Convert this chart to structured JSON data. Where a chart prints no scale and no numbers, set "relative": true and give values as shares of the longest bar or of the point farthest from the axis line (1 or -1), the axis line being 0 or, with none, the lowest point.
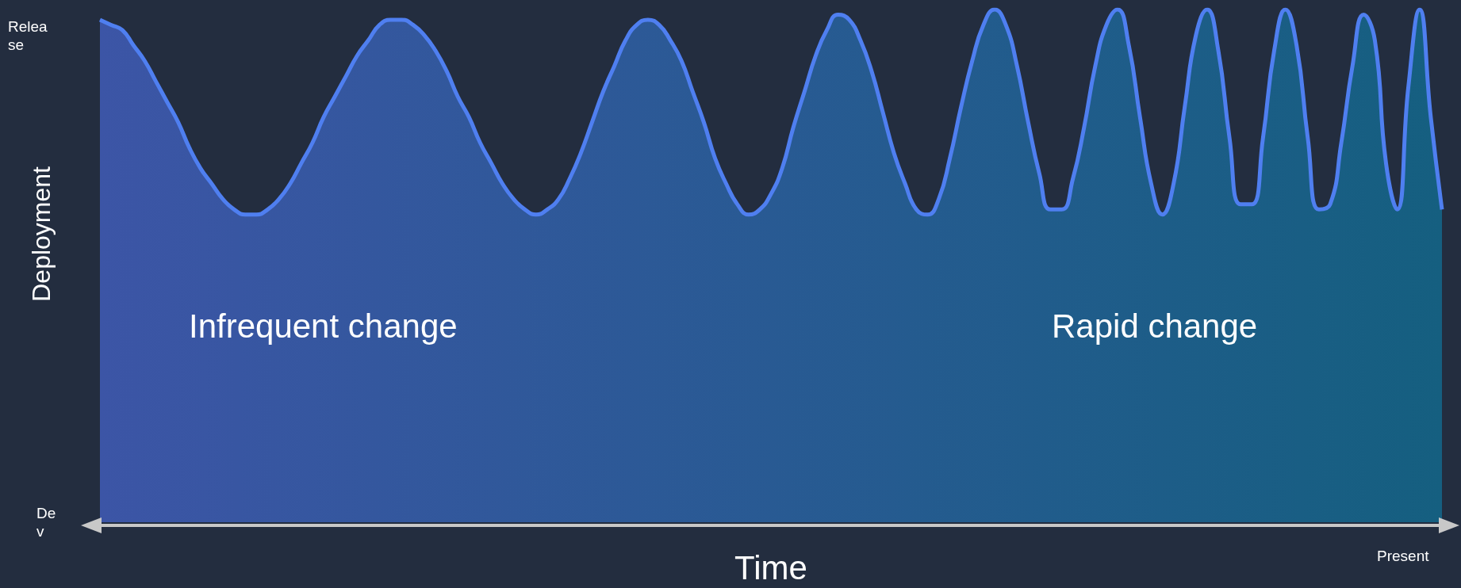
{
  "chart_data": {
    "type": "area",
    "xlabel": "Time",
    "ylabel": "Deployment",
    "relative": true,
    "categories": [
      null,
      null,
      null,
      null,
      null,
      null,
      null,
      null,
      null,
      null,
      null,
      null,
      null,
      null,
      null,
      null,
      null,
      null,
      null,
      null,
      null,
      null,
      null,
      null,
      null,
      null,
      null,
      null,
      null,
      null,
      null,
      null,
      null,
      null,
      null,
      null,
      null,
      null,
      null,
      null,
      null,
      null,
      null,
      null,
      null,
      null,
      null,
      null,
      null,
      null,
      null,
      null,
      null,
      null,
      null,
      null,
      null,
      null,
      null,
      null,
      null,
      null,
      null,
      null,
      null,
      null,
      null,
      null,
      null,
      null,
      null,
      null,
      null,
      null,
      null,
      null,
      null,
      null,
      null,
      null,
      null,
      null,
      null,
      null,
      null,
      null,
      null,
      null,
      null,
      null,
      null,
      null,
      null,
      null,
      null,
      null,
      null,
      null,
      null,
      null,
      null,
      null,
      null,
      null,
      null,
      null,
      null,
      null,
      null,
      null,
      null,
      null,
      null,
      null,
      null,
      null,
      null,
      null,
      null,
      null,
      null
    ],
    "series": [
      {
        "color": "#4f7ff0",
        "values": [
          0.98,
          0.97,
          0.96,
          0.93,
          0.9,
          0.86,
          0.82,
          0.78,
          0.73,
          0.69,
          0.66,
          0.63,
          0.61,
          0.6,
          0.6,
          0.61,
          0.63,
          0.66,
          0.7,
          0.74,
          0.79,
          0.83,
          0.87,
          0.91,
          0.94,
          0.97,
          0.98,
          0.98,
          0.97,
          0.95,
          0.92,
          0.88,
          0.83,
          0.79,
          0.74,
          0.7,
          0.66,
          0.63,
          0.61,
          0.6,
          0.61,
          0.63,
          0.67,
          0.72,
          0.78,
          0.84,
          0.89,
          0.94,
          0.97,
          0.98,
          0.97,
          0.94,
          0.9,
          0.84,
          0.78,
          0.71,
          0.66,
          0.62,
          0.6,
          0.61,
          0.64,
          0.69,
          0.77,
          0.84,
          0.91,
          0.96,
          0.99,
          0.98,
          0.94,
          0.88,
          0.8,
          0.72,
          0.66,
          0.61,
          0.6,
          0.63,
          0.71,
          0.81,
          0.9,
          0.97,
          1.0,
          0.97,
          0.89,
          0.78,
          0.68,
          0.61,
          0.61,
          0.67,
          0.77,
          0.89,
          0.97,
          1.0,
          0.93,
          0.79,
          0.66,
          0.6,
          0.66,
          0.81,
          0.95,
          1.0,
          0.92,
          0.75,
          0.62,
          0.62,
          0.75,
          0.92,
          1.0,
          0.93,
          0.75,
          0.61,
          0.62,
          0.74,
          0.89,
          0.99,
          0.94,
          0.7,
          0.61,
          0.85,
          1.0,
          0.79,
          0.61
        ]
      }
    ],
    "annotations": [
      "Release",
      "Dev",
      "Present",
      "Infrequent change",
      "Rapid change"
    ]
  }
}
